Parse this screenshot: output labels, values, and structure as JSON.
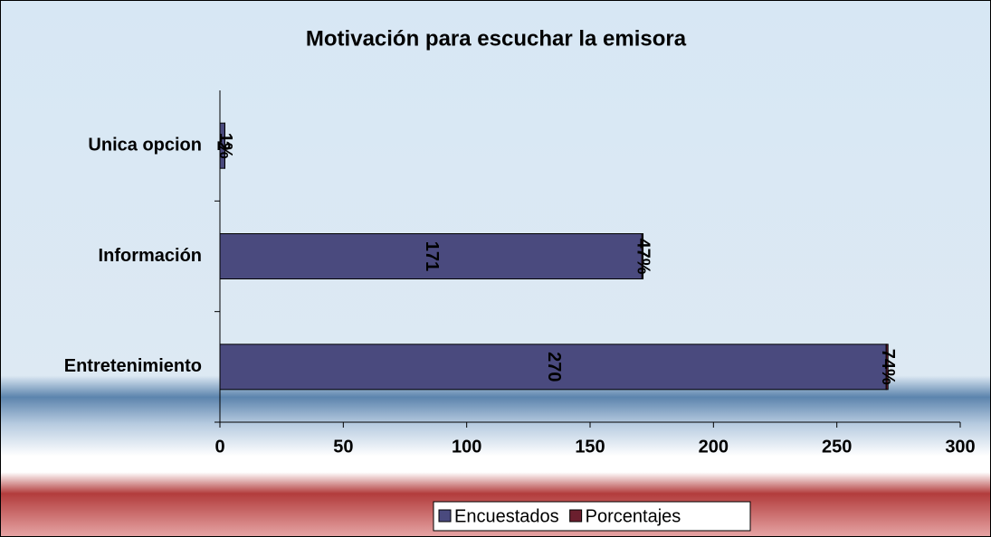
{
  "chart_data": {
    "type": "stacked_bar_horizontal",
    "title": "Motivación para escuchar la emisora",
    "categories": [
      "Entretenimiento",
      "Información",
      "Unica opcion"
    ],
    "series": [
      {
        "name": "Encuestados",
        "color": "#4a4a7e",
        "values": [
          270,
          171,
          2
        ]
      },
      {
        "name": "Porcentajes",
        "color": "#6b1f2e",
        "values": [
          0.74,
          0.47,
          0.01
        ],
        "value_labels": [
          "74%",
          "47%",
          "1%"
        ]
      }
    ],
    "xlim": [
      0,
      300
    ],
    "xticks": [
      0,
      50,
      100,
      150,
      200,
      250,
      300
    ],
    "legend": "bottom"
  }
}
